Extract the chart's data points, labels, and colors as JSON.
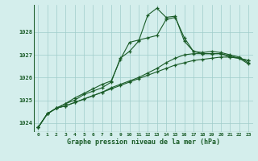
{
  "xlabel": "Graphe pression niveau de la mer (hPa)",
  "xlim": [
    -0.5,
    23.5
  ],
  "ylim": [
    1023.6,
    1029.2
  ],
  "yticks": [
    1024,
    1025,
    1026,
    1027,
    1028
  ],
  "xticks": [
    0,
    1,
    2,
    3,
    4,
    5,
    6,
    7,
    8,
    9,
    10,
    11,
    12,
    13,
    14,
    15,
    16,
    17,
    18,
    19,
    20,
    21,
    22,
    23
  ],
  "background_color": "#d4eeec",
  "grid_color": "#a0ccca",
  "line_color": "#1a5c28",
  "line1": [
    1023.8,
    1024.4,
    1024.65,
    1024.75,
    1024.9,
    1025.05,
    1025.2,
    1025.35,
    1025.5,
    1025.65,
    1025.8,
    1025.95,
    1026.1,
    1026.25,
    1026.4,
    1026.55,
    1026.65,
    1026.75,
    1026.8,
    1026.85,
    1026.9,
    1026.9,
    1026.85,
    1026.75
  ],
  "line2": [
    1023.8,
    1024.4,
    1024.65,
    1024.75,
    1024.9,
    1025.05,
    1025.2,
    1025.35,
    1025.55,
    1025.7,
    1025.85,
    1026.0,
    1026.2,
    1026.4,
    1026.65,
    1026.85,
    1027.0,
    1027.05,
    1027.05,
    1027.05,
    1027.05,
    1026.95,
    1026.85,
    1026.75
  ],
  "line3": [
    1023.8,
    1024.4,
    1024.65,
    1024.85,
    1025.1,
    1025.3,
    1025.5,
    1025.7,
    1025.85,
    1026.8,
    1027.55,
    1027.65,
    1027.75,
    1027.85,
    1028.55,
    1028.65,
    1027.75,
    1027.15,
    1027.05,
    1027.05,
    1027.05,
    1026.9,
    1026.85,
    1026.6
  ],
  "line4": [
    1023.8,
    1024.4,
    1024.65,
    1024.85,
    1025.0,
    1025.25,
    1025.4,
    1025.55,
    1025.8,
    1026.85,
    1027.15,
    1027.6,
    1028.75,
    1029.05,
    1028.65,
    1028.7,
    1027.6,
    1027.15,
    1027.1,
    1027.15,
    1027.1,
    1027.0,
    1026.9,
    1026.65
  ]
}
